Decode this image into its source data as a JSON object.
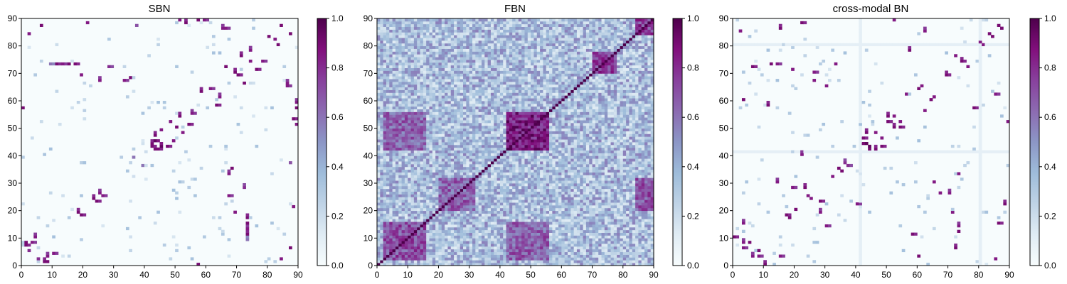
{
  "chart_data": [
    {
      "type": "heatmap",
      "title": "SBN",
      "nodes": 90,
      "xlim": [
        0,
        90
      ],
      "ylim": [
        0,
        90
      ],
      "xticks": [
        0,
        10,
        20,
        30,
        40,
        50,
        60,
        70,
        80,
        90
      ],
      "yticks": [
        0,
        10,
        20,
        30,
        40,
        50,
        60,
        70,
        80,
        90
      ],
      "colorbar": {
        "range": [
          0.0,
          1.0
        ],
        "ticks": [
          "0.0",
          "0.2",
          "0.4",
          "0.6",
          "0.8",
          "1.0"
        ]
      },
      "description_values": {
        "background": 0.0,
        "connections": [
          {
            "i": 1,
            "j": 7,
            "v": 0.9
          },
          {
            "i": 3,
            "j": 8,
            "v": 0.85
          },
          {
            "i": 5,
            "j": 2,
            "v": 0.8
          },
          {
            "i": 8,
            "j": 1,
            "v": 0.9
          },
          {
            "i": 10,
            "j": 4,
            "v": 0.85
          },
          {
            "i": 11,
            "j": 73,
            "v": 0.9
          },
          {
            "i": 13,
            "j": 73,
            "v": 0.85
          },
          {
            "i": 15,
            "j": 73,
            "v": 0.9
          },
          {
            "i": 17,
            "j": 73,
            "v": 0.9
          },
          {
            "i": 19,
            "j": 18,
            "v": 0.9
          },
          {
            "i": 21,
            "j": 88,
            "v": 0.85
          },
          {
            "i": 24,
            "j": 23,
            "v": 0.9
          },
          {
            "i": 26,
            "j": 25,
            "v": 0.85
          },
          {
            "i": 28,
            "j": 72,
            "v": 0.8
          },
          {
            "i": 33,
            "j": 67,
            "v": 0.85
          },
          {
            "i": 35,
            "j": 68,
            "v": 0.9
          },
          {
            "i": 37,
            "j": 87,
            "v": 0.7
          },
          {
            "i": 39,
            "j": 36,
            "v": 0.6
          },
          {
            "i": 42,
            "j": 43,
            "v": 0.9
          },
          {
            "i": 43,
            "j": 45,
            "v": 0.95
          },
          {
            "i": 44,
            "j": 42,
            "v": 0.9
          },
          {
            "i": 45,
            "j": 44,
            "v": 0.85
          },
          {
            "i": 47,
            "j": 43,
            "v": 0.9
          },
          {
            "i": 49,
            "j": 45,
            "v": 0.85
          },
          {
            "i": 50,
            "j": 50,
            "v": 0.9
          },
          {
            "i": 52,
            "j": 48,
            "v": 0.85
          },
          {
            "i": 54,
            "j": 51,
            "v": 0.9
          },
          {
            "i": 55,
            "j": 55,
            "v": 0.85
          },
          {
            "i": 57,
            "j": 90,
            "v": 0.9
          },
          {
            "i": 59,
            "j": 89,
            "v": 0.85
          },
          {
            "i": 61,
            "j": 64,
            "v": 0.85
          },
          {
            "i": 63,
            "j": 58,
            "v": 0.9
          },
          {
            "i": 66,
            "j": 86,
            "v": 0.85
          },
          {
            "i": 67,
            "j": 25,
            "v": 0.85
          },
          {
            "i": 69,
            "j": 19,
            "v": 0.85
          },
          {
            "i": 70,
            "j": 69,
            "v": 0.9
          },
          {
            "i": 72,
            "j": 66,
            "v": 0.9
          },
          {
            "i": 74,
            "j": 74,
            "v": 0.85
          },
          {
            "i": 76,
            "j": 71,
            "v": 0.9
          },
          {
            "i": 78,
            "j": 74,
            "v": 0.85
          },
          {
            "i": 80,
            "j": 83,
            "v": 0.9
          },
          {
            "i": 82,
            "j": 82,
            "v": 0.85
          },
          {
            "i": 84,
            "j": 87,
            "v": 0.9
          },
          {
            "i": 86,
            "j": 65,
            "v": 0.85
          },
          {
            "i": 88,
            "j": 53,
            "v": 0.9
          },
          {
            "i": 89,
            "j": 51,
            "v": 0.85
          },
          {
            "i": 0,
            "j": 57,
            "v": 0.9
          },
          {
            "i": 2,
            "j": 84,
            "v": 0.85
          },
          {
            "i": 6,
            "j": 87,
            "v": 0.9
          },
          {
            "i": 9,
            "j": 73,
            "v": 0.6
          }
        ]
      }
    },
    {
      "type": "heatmap",
      "title": "FBN",
      "nodes": 90,
      "xlim": [
        0,
        90
      ],
      "ylim": [
        0,
        90
      ],
      "xticks": [
        0,
        10,
        20,
        30,
        40,
        50,
        60,
        70,
        80,
        90
      ],
      "yticks": [
        0,
        10,
        20,
        30,
        40,
        50,
        60,
        70,
        80,
        90
      ],
      "colorbar": {
        "range": [
          0.0,
          1.0
        ],
        "ticks": [
          "0.0",
          "0.2",
          "0.4",
          "0.6",
          "0.8",
          "1.0"
        ]
      },
      "description_values": {
        "background": 0.35,
        "diagonal": 1.0,
        "blocks": [
          {
            "x": [
              42,
              56
            ],
            "y": [
              42,
              56
            ],
            "v": 0.9
          },
          {
            "x": [
              2,
              16
            ],
            "y": [
              42,
              56
            ],
            "v": 0.7
          },
          {
            "x": [
              42,
              56
            ],
            "y": [
              2,
              16
            ],
            "v": 0.7
          },
          {
            "x": [
              2,
              16
            ],
            "y": [
              2,
              16
            ],
            "v": 0.75
          },
          {
            "x": [
              20,
              32
            ],
            "y": [
              20,
              32
            ],
            "v": 0.7
          },
          {
            "x": [
              84,
              90
            ],
            "y": [
              84,
              90
            ],
            "v": 0.8
          },
          {
            "x": [
              70,
              78
            ],
            "y": [
              70,
              78
            ],
            "v": 0.8
          },
          {
            "x": [
              84,
              90
            ],
            "y": [
              20,
              32
            ],
            "v": 0.75
          }
        ]
      }
    },
    {
      "type": "heatmap",
      "title": "cross-modal BN",
      "nodes": 90,
      "xlim": [
        0,
        90
      ],
      "ylim": [
        0,
        90
      ],
      "xticks": [
        0,
        10,
        20,
        30,
        40,
        50,
        60,
        70,
        80,
        90
      ],
      "yticks": [
        0,
        10,
        20,
        30,
        40,
        50,
        60,
        70,
        80,
        90
      ],
      "colorbar": {
        "range": [
          0.0,
          1.0
        ],
        "ticks": [
          "0.0",
          "0.2",
          "0.4",
          "0.6",
          "0.8",
          "1.0"
        ]
      },
      "description_values": {
        "background": 0.0,
        "faint_lines": [
          41,
          80
        ],
        "connections": [
          {
            "i": 1,
            "j": 10,
            "v": 0.9
          },
          {
            "i": 3,
            "j": 6,
            "v": 0.85
          },
          {
            "i": 5,
            "j": 8,
            "v": 0.9
          },
          {
            "i": 8,
            "j": 3,
            "v": 0.85
          },
          {
            "i": 10,
            "j": 1,
            "v": 0.9
          },
          {
            "i": 12,
            "j": 73,
            "v": 0.9
          },
          {
            "i": 14,
            "j": 73,
            "v": 0.85
          },
          {
            "i": 17,
            "j": 18,
            "v": 0.9
          },
          {
            "i": 19,
            "j": 28,
            "v": 0.85
          },
          {
            "i": 22,
            "j": 88,
            "v": 0.9
          },
          {
            "i": 25,
            "j": 24,
            "v": 0.85
          },
          {
            "i": 28,
            "j": 23,
            "v": 0.9
          },
          {
            "i": 30,
            "j": 14,
            "v": 0.85
          },
          {
            "i": 32,
            "j": 32,
            "v": 0.85
          },
          {
            "i": 34,
            "j": 35,
            "v": 0.9
          },
          {
            "i": 37,
            "j": 36,
            "v": 0.8
          },
          {
            "i": 40,
            "j": 22,
            "v": 0.85
          },
          {
            "i": 42,
            "j": 46,
            "v": 0.9
          },
          {
            "i": 43,
            "j": 44,
            "v": 0.95
          },
          {
            "i": 44,
            "j": 42,
            "v": 0.9
          },
          {
            "i": 46,
            "j": 48,
            "v": 0.85
          },
          {
            "i": 48,
            "j": 43,
            "v": 0.9
          },
          {
            "i": 50,
            "j": 52,
            "v": 0.9
          },
          {
            "i": 52,
            "j": 54,
            "v": 0.85
          },
          {
            "i": 54,
            "j": 50,
            "v": 0.9
          },
          {
            "i": 56,
            "j": 62,
            "v": 0.85
          },
          {
            "i": 58,
            "j": 11,
            "v": 0.9
          },
          {
            "i": 61,
            "j": 65,
            "v": 0.85
          },
          {
            "i": 64,
            "j": 60,
            "v": 0.9
          },
          {
            "i": 67,
            "j": 26,
            "v": 0.85
          },
          {
            "i": 69,
            "j": 69,
            "v": 0.9
          },
          {
            "i": 71,
            "j": 19,
            "v": 0.85
          },
          {
            "i": 74,
            "j": 74,
            "v": 0.9
          },
          {
            "i": 76,
            "j": 72,
            "v": 0.85
          },
          {
            "i": 78,
            "j": 57,
            "v": 0.9
          },
          {
            "i": 81,
            "j": 80,
            "v": 0.85
          },
          {
            "i": 83,
            "j": 84,
            "v": 0.9
          },
          {
            "i": 85,
            "j": 62,
            "v": 0.85
          },
          {
            "i": 87,
            "j": 86,
            "v": 0.9
          },
          {
            "i": 89,
            "j": 52,
            "v": 0.85
          },
          {
            "i": 0,
            "j": 10,
            "v": 0.9
          },
          {
            "i": 2,
            "j": 85,
            "v": 0.85
          },
          {
            "i": 6,
            "j": 72,
            "v": 0.9
          },
          {
            "i": 15,
            "j": 3,
            "v": 0.85
          },
          {
            "i": 20,
            "j": 20,
            "v": 0.9
          },
          {
            "i": 26,
            "j": 70,
            "v": 0.85
          },
          {
            "i": 33,
            "j": 73,
            "v": 0.85
          },
          {
            "i": 60,
            "j": 3,
            "v": 0.9
          },
          {
            "i": 65,
            "j": 30,
            "v": 0.85
          },
          {
            "i": 86,
            "j": 15,
            "v": 0.9
          }
        ]
      }
    }
  ]
}
